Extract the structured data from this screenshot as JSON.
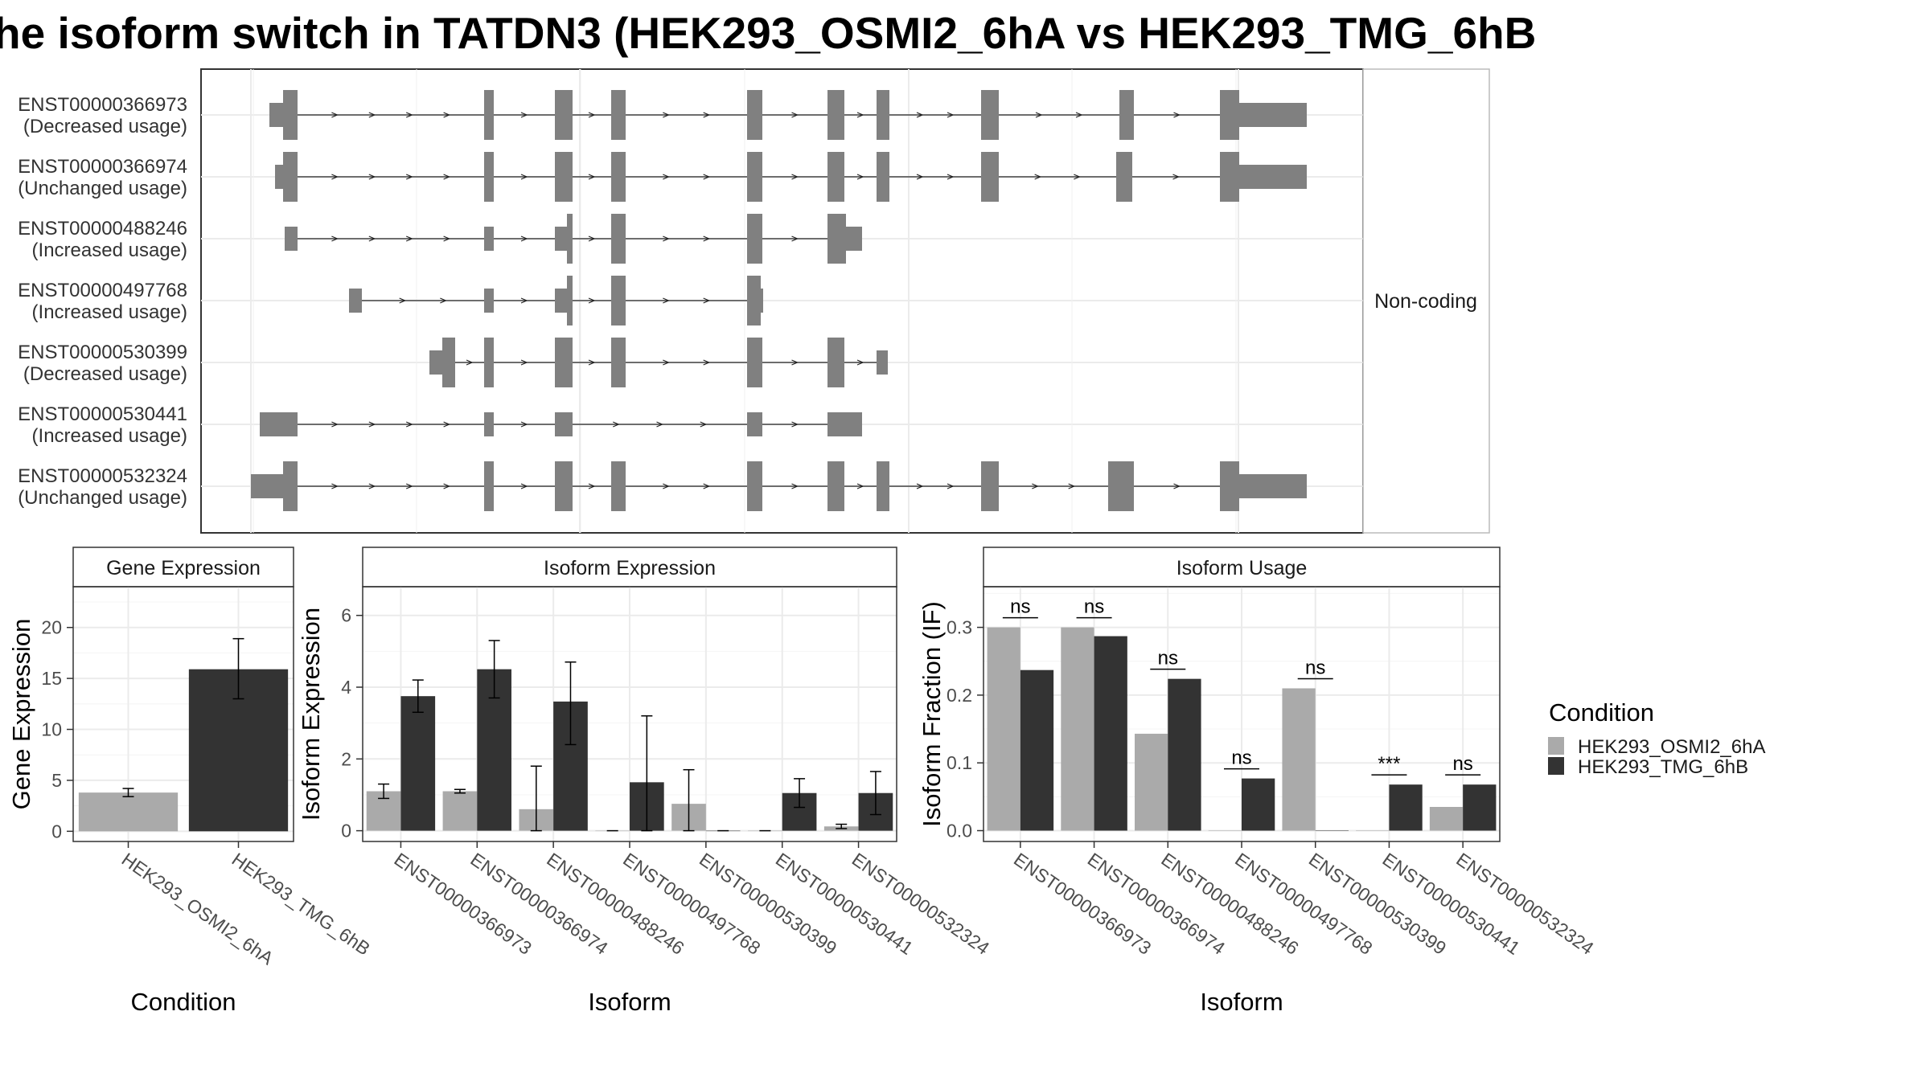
{
  "chart_data": [
    {
      "type": "transcript-structure",
      "title": "he isoform switch in TATDN3 (HEK293_OSMI2_6hA vs HEK293_TMG_6hB",
      "strip_label": "Non-coding",
      "transcripts": [
        {
          "id": "ENST00000366973",
          "usage": "(Decreased usage)"
        },
        {
          "id": "ENST00000366974",
          "usage": "(Unchanged usage)"
        },
        {
          "id": "ENST00000488246",
          "usage": "(Increased usage)"
        },
        {
          "id": "ENST00000497768",
          "usage": "(Increased usage)"
        },
        {
          "id": "ENST00000530399",
          "usage": "(Decreased usage)"
        },
        {
          "id": "ENST00000530441",
          "usage": "(Increased usage)"
        },
        {
          "id": "ENST00000532324",
          "usage": "(Unchanged usage)"
        }
      ]
    },
    {
      "type": "bar",
      "title": "Gene Expression",
      "xlabel": "Condition",
      "ylabel": "Gene Expression",
      "categories": [
        "HEK293_OSMI2_6hA",
        "HEK293_TMG_6hB"
      ],
      "values": [
        3.8,
        15.9
      ],
      "errors": [
        [
          3.4,
          4.2
        ],
        [
          13.0,
          18.9
        ]
      ],
      "ylim": [
        -1,
        24
      ],
      "yticks": [
        0,
        5,
        10,
        15,
        20
      ]
    },
    {
      "type": "bar",
      "title": "Isoform Expression",
      "xlabel": "Isoform",
      "ylabel": "Isoform Expression",
      "categories": [
        "ENST00000366973",
        "ENST00000366974",
        "ENST00000488246",
        "ENST00000497768",
        "ENST00000530399",
        "ENST00000530441",
        "ENST00000532324"
      ],
      "series": [
        {
          "name": "HEK293_OSMI2_6hA",
          "values": [
            1.1,
            1.1,
            0.6,
            0.0,
            0.75,
            0.0,
            0.12
          ],
          "errors": [
            [
              0.9,
              1.3
            ],
            [
              1.05,
              1.15
            ],
            [
              0.0,
              1.8
            ],
            [
              0.0,
              0.0
            ],
            [
              0.0,
              1.7
            ],
            [
              0.0,
              0.0
            ],
            [
              0.06,
              0.18
            ]
          ]
        },
        {
          "name": "HEK293_TMG_6hB",
          "values": [
            3.75,
            4.5,
            3.6,
            1.35,
            0.0,
            1.05,
            1.05
          ],
          "errors": [
            [
              3.3,
              4.2
            ],
            [
              3.7,
              5.3
            ],
            [
              2.4,
              4.7
            ],
            [
              0.0,
              3.2
            ],
            [
              0.0,
              0.0
            ],
            [
              0.65,
              1.45
            ],
            [
              0.45,
              1.65
            ]
          ]
        }
      ],
      "ylim": [
        -0.3,
        6.8
      ],
      "yticks": [
        0,
        2,
        4,
        6
      ]
    },
    {
      "type": "bar",
      "title": "Isoform Usage",
      "xlabel": "Isoform",
      "ylabel": "Isoform Fraction (IF)",
      "categories": [
        "ENST00000366973",
        "ENST00000366974",
        "ENST00000488246",
        "ENST00000497768",
        "ENST00000530399",
        "ENST00000530441",
        "ENST00000532324"
      ],
      "series": [
        {
          "name": "HEK293_OSMI2_6hA",
          "values": [
            0.3,
            0.3,
            0.143,
            0.0,
            0.21,
            0.0,
            0.035
          ]
        },
        {
          "name": "HEK293_TMG_6hB",
          "values": [
            0.237,
            0.287,
            0.224,
            0.077,
            0.0,
            0.068,
            0.068
          ]
        }
      ],
      "significance": [
        "ns",
        "ns",
        "ns",
        "ns",
        "ns",
        "***",
        "ns"
      ],
      "ylim": [
        -0.016,
        0.36
      ],
      "yticks": [
        0.0,
        0.1,
        0.2,
        0.3
      ],
      "ytick_labels": [
        "0.0",
        "0.1",
        "0.2",
        "0.3"
      ]
    }
  ],
  "legend": {
    "title": "Condition",
    "position": "right",
    "entries": [
      {
        "label": "HEK293_OSMI2_6hA",
        "color": "#aaaaaa"
      },
      {
        "label": "HEK293_TMG_6hB",
        "color": "#333333"
      }
    ]
  },
  "colors": {
    "exon": "#808080",
    "condition_a": "#aaaaaa",
    "condition_b": "#333333"
  }
}
